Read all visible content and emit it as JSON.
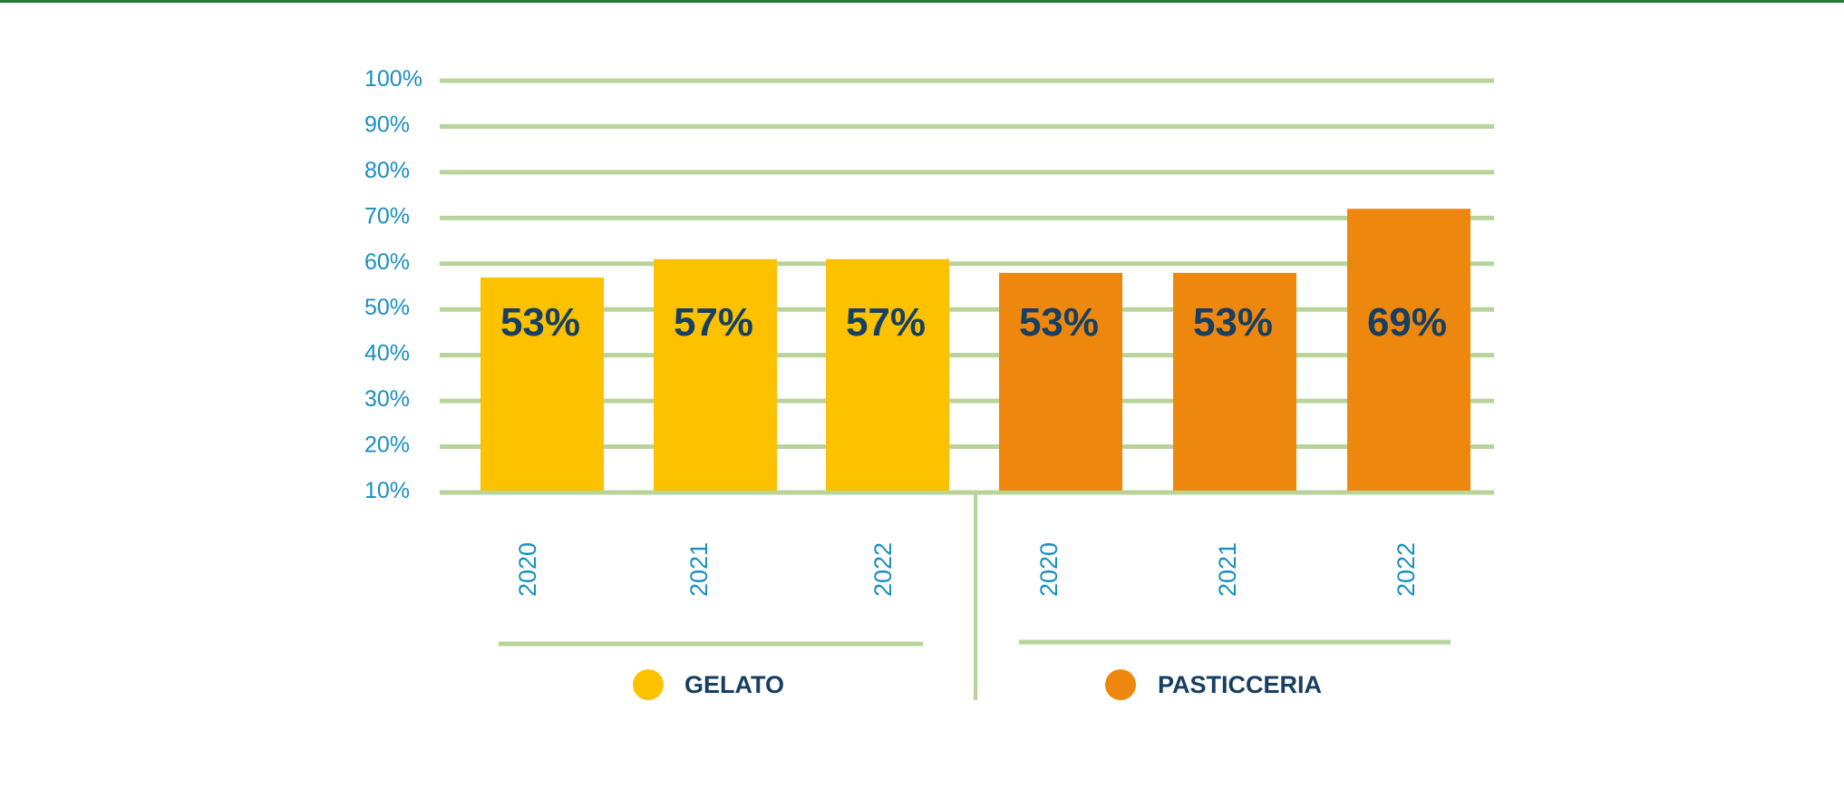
{
  "colors": {
    "top_rule": "#1f7a3a",
    "grid": "#b8d49a",
    "tick_text": "#1a8fc0",
    "value_text": "#163f62",
    "legend_text": "#163f62",
    "gelato": "#fcc200",
    "pasticceria": "#ee870d"
  },
  "chart_data": {
    "type": "bar",
    "title": "",
    "xlabel": "",
    "ylabel": "",
    "ylim": [
      10,
      100
    ],
    "yticks": [
      "10%",
      "20%",
      "30%",
      "40%",
      "50%",
      "60%",
      "70%",
      "80%",
      "90%",
      "100%"
    ],
    "tick_values": [
      10,
      20,
      30,
      40,
      50,
      60,
      70,
      80,
      90,
      100
    ],
    "categories": [
      "2020",
      "2021",
      "2022"
    ],
    "series": [
      {
        "name": "GELATO",
        "color_key": "gelato",
        "values": [
          53,
          57,
          57
        ],
        "value_labels": [
          "53%",
          "57%",
          "57%"
        ],
        "bar_top": [
          57,
          61,
          61
        ]
      },
      {
        "name": "PASTICCERIA",
        "color_key": "pasticceria",
        "values": [
          53,
          53,
          69
        ],
        "value_labels": [
          "53%",
          "53%",
          "69%"
        ],
        "bar_top": [
          58,
          58,
          72
        ]
      }
    ],
    "legend": [
      "GELATO",
      "PASTICCERIA"
    ],
    "legend_position": "bottom"
  }
}
